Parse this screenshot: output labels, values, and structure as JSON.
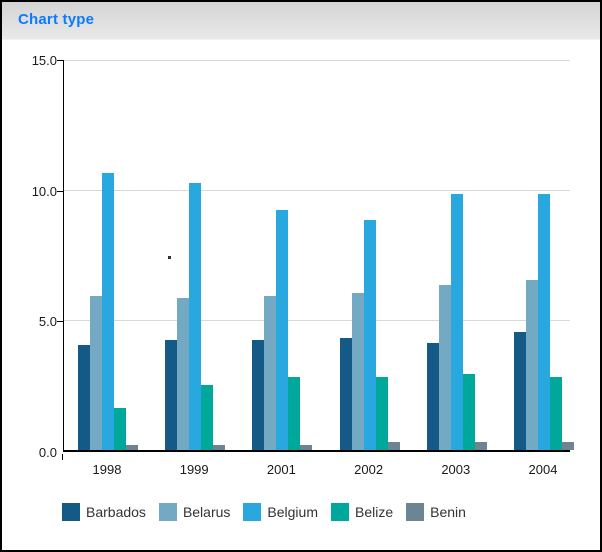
{
  "header": {
    "title": "Chart type"
  },
  "colors": {
    "title_blue": "#0a7bff",
    "axis": "#000000",
    "gridline": "#d9d9d9",
    "text": "#1a1a1a",
    "header_top": "#d4d4d4",
    "header_bottom": "#e9e9e9"
  },
  "chart_data": {
    "type": "bar",
    "title": "Chart type",
    "xlabel": "",
    "ylabel": "",
    "categories": [
      "1998",
      "1999",
      "2001",
      "2002",
      "2003",
      "2004"
    ],
    "series": [
      {
        "name": "Barbados",
        "color": "#155987",
        "values": [
          4.0,
          4.2,
          4.2,
          4.3,
          4.1,
          4.5
        ]
      },
      {
        "name": "Belarus",
        "color": "#74a9c4",
        "values": [
          5.9,
          5.8,
          5.9,
          6.0,
          6.3,
          6.5
        ]
      },
      {
        "name": "Belgium",
        "color": "#29a8e0",
        "values": [
          10.6,
          10.2,
          9.2,
          8.8,
          9.8,
          9.8
        ]
      },
      {
        "name": "Belize",
        "color": "#00a79b",
        "values": [
          1.6,
          2.5,
          2.8,
          2.8,
          2.9,
          2.8
        ]
      },
      {
        "name": "Benin",
        "color": "#6d8493",
        "values": [
          0.2,
          0.2,
          0.2,
          0.3,
          0.3,
          0.3
        ]
      }
    ],
    "ylim": [
      0,
      15
    ],
    "yticks": [
      {
        "value": 0,
        "label": "0.0"
      },
      {
        "value": 5,
        "label": "5.0"
      },
      {
        "value": 10,
        "label": "10.0"
      },
      {
        "value": 15,
        "label": "15.0"
      }
    ],
    "grid": true,
    "legend_position": "bottom"
  }
}
